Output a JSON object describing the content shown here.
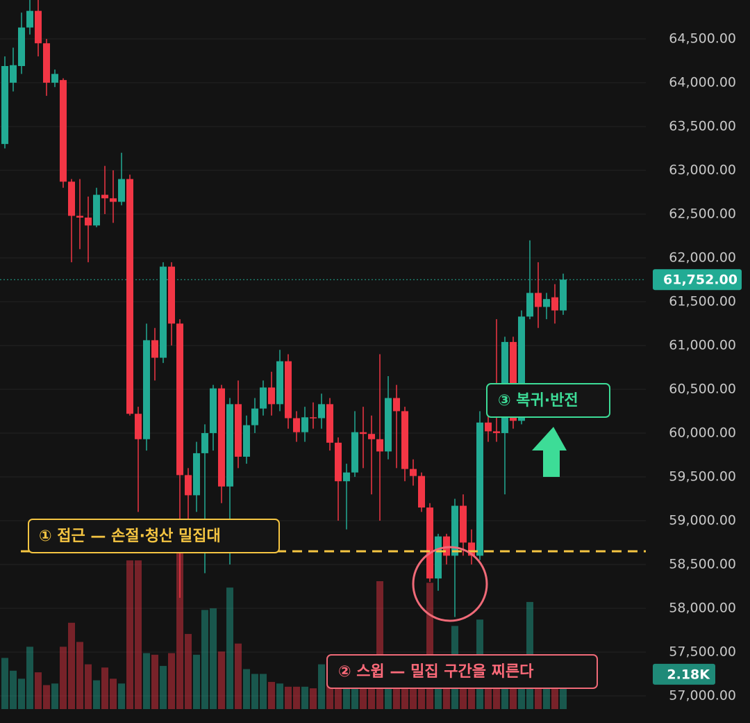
{
  "chart_data": {
    "type": "candlestick",
    "open": [
      63300,
      64000,
      64190,
      64630,
      64820,
      64450,
      64000,
      64030,
      62870,
      62480,
      62460,
      62370,
      62720,
      62680,
      62640,
      62900,
      60220,
      59930,
      61060,
      60860,
      61900,
      61250,
      59520,
      59290,
      59770,
      60000,
      60510,
      59390,
      60330,
      59730,
      60090,
      60280,
      60520,
      60330,
      60820,
      60170,
      60010,
      60180,
      60170,
      60330,
      59890,
      59450,
      59550,
      60010,
      59990,
      59930,
      59790,
      60400,
      60250,
      59590,
      59510,
      59150,
      58340,
      58820,
      58600,
      59170,
      58750,
      58600,
      60120,
      60020,
      60000,
      61040,
      60140,
      61330,
      61600,
      61440,
      61550,
      61400
    ],
    "high": [
      64300,
      64400,
      64800,
      64950,
      64950,
      64500,
      64150,
      64050,
      62900,
      62900,
      62700,
      62800,
      63050,
      63000,
      63200,
      62950,
      60300,
      61250,
      61200,
      61950,
      61950,
      61300,
      59600,
      59900,
      60100,
      60550,
      60550,
      60400,
      60600,
      60200,
      60400,
      60600,
      60700,
      60950,
      60900,
      60250,
      60300,
      60350,
      60450,
      60400,
      59950,
      59650,
      60250,
      60300,
      60200,
      60900,
      60650,
      60550,
      60300,
      59700,
      59550,
      59200,
      58850,
      58850,
      59250,
      59300,
      58900,
      60250,
      60300,
      61300,
      61100,
      61100,
      61400,
      62200,
      61950,
      61600,
      61700,
      61820
    ],
    "low": [
      63250,
      63900,
      64100,
      64550,
      64300,
      63850,
      63950,
      62800,
      61950,
      62100,
      61950,
      62350,
      62500,
      62400,
      62600,
      60200,
      59100,
      59800,
      60600,
      60800,
      61000,
      58120,
      58800,
      59100,
      58400,
      59800,
      59200,
      58500,
      59600,
      59650,
      60000,
      60200,
      60200,
      60250,
      60050,
      59900,
      59900,
      60050,
      60050,
      59800,
      59000,
      58900,
      59500,
      59600,
      59300,
      59000,
      59700,
      59600,
      59450,
      59400,
      59100,
      58300,
      58200,
      58500,
      57900,
      58600,
      58500,
      58550,
      59900,
      59900,
      59300,
      60050,
      60100,
      61300,
      61200,
      61300,
      61250,
      61350
    ],
    "close": [
      64190,
      64200,
      64630,
      64820,
      64450,
      64000,
      64100,
      62870,
      62480,
      62460,
      62370,
      62720,
      62680,
      62640,
      62900,
      60220,
      59930,
      61060,
      60860,
      61900,
      61250,
      59520,
      59290,
      59770,
      60000,
      60510,
      59390,
      60330,
      59730,
      60090,
      60280,
      60520,
      60330,
      60820,
      60170,
      60010,
      60180,
      60170,
      60330,
      59890,
      59450,
      59550,
      60010,
      59990,
      59930,
      59790,
      60400,
      60250,
      59590,
      59510,
      59150,
      58340,
      58820,
      58600,
      59170,
      58750,
      58600,
      60120,
      60020,
      60000,
      61040,
      60140,
      61330,
      61600,
      61440,
      61530,
      61400,
      61752
    ],
    "volume": [
      3.2,
      2.4,
      1.9,
      3.9,
      2.3,
      1.5,
      1.6,
      3.9,
      5.4,
      4.2,
      2.8,
      1.8,
      2.6,
      1.9,
      1.6,
      9.3,
      9.3,
      3.5,
      3.4,
      2.7,
      3.5,
      9.9,
      4.7,
      3.4,
      6.2,
      6.3,
      3.6,
      7.6,
      4.1,
      2.5,
      2.2,
      2.2,
      1.7,
      1.6,
      1.4,
      1.4,
      1.4,
      1.3,
      2.8,
      2.5,
      2.1,
      2.2,
      1.8,
      1.6,
      1.5,
      8.0,
      1.5,
      2.0,
      1.6,
      1.5,
      1.8,
      7.9,
      3.0,
      1.5,
      5.2,
      2.4,
      1.6,
      5.6,
      1.4,
      1.3,
      1.5,
      2.2,
      1.8,
      6.7,
      2.6,
      1.5,
      1.9,
      2.18
    ],
    "up_color": "#22ab94",
    "down_color": "#f23645",
    "ylim": [
      56690,
      64944
    ],
    "yticks": [
      {
        "value": 57000,
        "label": "57,000.00"
      },
      {
        "value": 57500,
        "label": "57,500.00"
      },
      {
        "value": 58000,
        "label": "58,000.00"
      },
      {
        "value": 58500,
        "label": "58,500.00"
      },
      {
        "value": 59000,
        "label": "59,000.00"
      },
      {
        "value": 59500,
        "label": "59,500.00"
      },
      {
        "value": 60000,
        "label": "60,000.00"
      },
      {
        "value": 60500,
        "label": "60,500.00"
      },
      {
        "value": 61000,
        "label": "61,000.00"
      },
      {
        "value": 61500,
        "label": "61,500.00"
      },
      {
        "value": 62000,
        "label": "62,000.00"
      },
      {
        "value": 62500,
        "label": "62,500.00"
      },
      {
        "value": 63000,
        "label": "63,000.00"
      },
      {
        "value": 63500,
        "label": "63,500.00"
      },
      {
        "value": 64000,
        "label": "64,000.00"
      },
      {
        "value": 64500,
        "label": "64,500.00"
      }
    ],
    "grid": true,
    "volume_ylim": [
      0,
      10
    ],
    "last_price": {
      "value": 61752,
      "label": "61,752.00"
    },
    "last_volume": {
      "value": 2.18,
      "label": "2.18K"
    },
    "liquidity_level": 58650,
    "annotations": [
      "① 접근 — 손절·청산 밀집대",
      "② 스윕 — 밀집 구간을 찌른다",
      "③ 복귀·반전"
    ]
  }
}
